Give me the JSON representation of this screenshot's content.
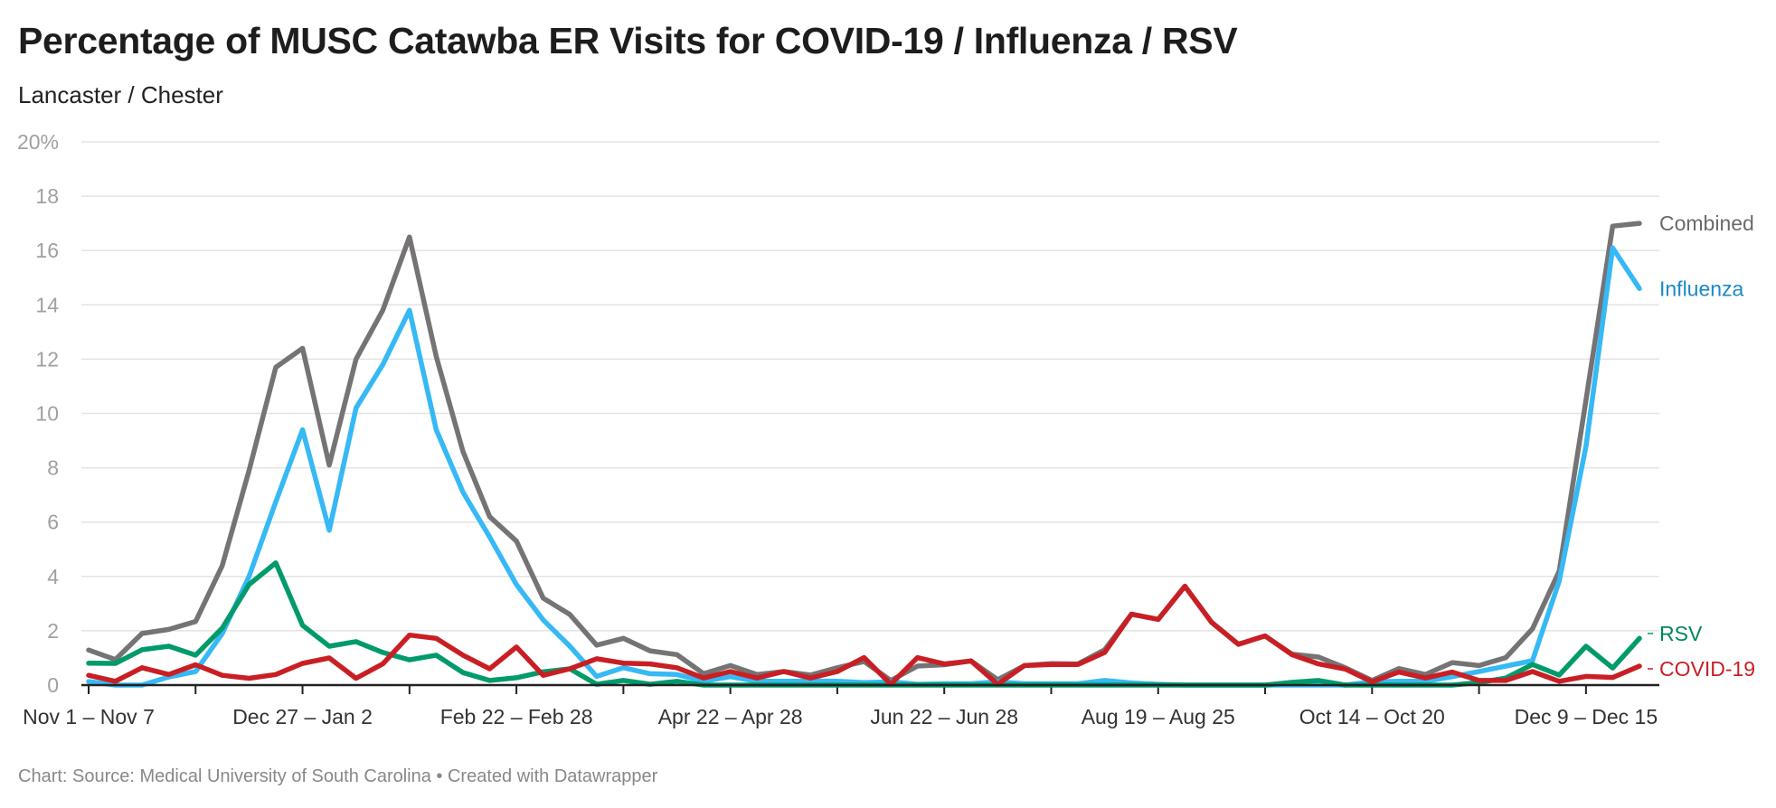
{
  "title": "Percentage of MUSC Catawba ER Visits for COVID-19 / Influenza / RSV",
  "subtitle": "Lancaster / Chester",
  "footer": "Chart: Source: Medical University of South Carolina • Created with Datawrapper",
  "chart_data": {
    "type": "line",
    "title": "Percentage of MUSC Catawba ER Visits for COVID-19 / Influenza / RSV",
    "subtitle": "Lancaster / Chester",
    "xlabel": "",
    "ylabel": "",
    "ylim": [
      0,
      20
    ],
    "y_ticks": [
      0,
      2,
      4,
      6,
      8,
      10,
      12,
      14,
      16,
      18,
      20
    ],
    "y_tick_labels": [
      "0",
      "2",
      "4",
      "6",
      "8",
      "10",
      "12",
      "14",
      "16",
      "18",
      "20%"
    ],
    "grid": true,
    "legend": "direct labels at right end of lines",
    "x_tick_labels": [
      {
        "index": 0,
        "label": "Nov 1 – Nov 7"
      },
      {
        "index": 8,
        "label": "Dec 27 – Jan 2"
      },
      {
        "index": 16,
        "label": "Feb 22 – Feb 28"
      },
      {
        "index": 24,
        "label": "Apr 22 – Apr 28"
      },
      {
        "index": 32,
        "label": "Jun 22 – Jun 28"
      },
      {
        "index": 40,
        "label": "Aug 19 – Aug 25"
      },
      {
        "index": 48,
        "label": "Oct 14 – Oct 20"
      },
      {
        "index": 56,
        "label": "Dec 9 – Dec 15"
      }
    ],
    "series": [
      {
        "name": "Combined",
        "color": "#757374",
        "label_color": "#6b6b6b",
        "values": [
          1.29,
          0.94,
          1.9,
          2.05,
          2.34,
          4.4,
          7.9,
          11.7,
          12.4,
          8.1,
          12.0,
          13.8,
          16.5,
          12.1,
          8.6,
          6.2,
          5.3,
          3.2,
          2.6,
          1.47,
          1.72,
          1.26,
          1.12,
          0.42,
          0.72,
          0.39,
          0.5,
          0.37,
          0.64,
          0.87,
          0.17,
          0.7,
          0.75,
          0.89,
          0.2,
          0.72,
          0.79,
          0.78,
          1.3,
          2.61,
          2.42,
          3.64,
          2.31,
          1.5,
          1.81,
          1.14,
          1.03,
          0.64,
          0.17,
          0.61,
          0.39,
          0.83,
          0.72,
          1.01,
          2.07,
          4.2,
          10.5,
          16.9,
          17.0
        ]
      },
      {
        "name": "Influenza",
        "color": "#36b9f5",
        "label_color": "#1a8ac6",
        "values": [
          0.13,
          0,
          0,
          0.3,
          0.5,
          1.9,
          4.0,
          6.75,
          9.4,
          5.7,
          10.2,
          11.8,
          13.8,
          9.4,
          7.1,
          5.45,
          3.7,
          2.4,
          1.43,
          0.32,
          0.64,
          0.42,
          0.39,
          0.14,
          0.31,
          0.14,
          0.14,
          0.15,
          0.14,
          0.09,
          0.12,
          0.03,
          0.05,
          0.05,
          0.12,
          0.05,
          0.05,
          0.05,
          0.17,
          0.08,
          0.03,
          0,
          0,
          0,
          0,
          0,
          0,
          0,
          0.12,
          0.14,
          0.14,
          0.31,
          0.5,
          0.7,
          0.9,
          3.83,
          8.8,
          16.1,
          14.6
        ]
      },
      {
        "name": "RSV",
        "color": "#009a6b",
        "label_color": "#00875e",
        "values": [
          0.81,
          0.8,
          1.3,
          1.43,
          1.1,
          2.1,
          3.7,
          4.5,
          2.2,
          1.43,
          1.6,
          1.2,
          0.93,
          1.1,
          0.46,
          0.17,
          0.27,
          0.49,
          0.6,
          0.03,
          0.17,
          0.03,
          0.14,
          0,
          0,
          0,
          0,
          0,
          0,
          0,
          0,
          0,
          0,
          0,
          0,
          0,
          0,
          0,
          0,
          0,
          0,
          0,
          0,
          0,
          0,
          0.1,
          0.17,
          0,
          0,
          0,
          0,
          0,
          0.09,
          0.26,
          0.76,
          0.37,
          1.43,
          0.63,
          1.72
        ]
      },
      {
        "name": "COVID-19",
        "color": "#c91f24",
        "label_color": "#c91f24",
        "values": [
          0.36,
          0.14,
          0.64,
          0.39,
          0.75,
          0.36,
          0.25,
          0.39,
          0.8,
          1.0,
          0.25,
          0.78,
          1.84,
          1.72,
          1.1,
          0.6,
          1.4,
          0.36,
          0.6,
          0.97,
          0.81,
          0.78,
          0.64,
          0.26,
          0.5,
          0.26,
          0.5,
          0.26,
          0.5,
          1.01,
          0.03,
          1.01,
          0.78,
          0.89,
          0.03,
          0.72,
          0.76,
          0.76,
          1.2,
          2.61,
          2.42,
          3.64,
          2.31,
          1.5,
          1.81,
          1.12,
          0.78,
          0.59,
          0.12,
          0.48,
          0.26,
          0.48,
          0.17,
          0.17,
          0.5,
          0.14,
          0.32,
          0.28,
          0.7
        ]
      }
    ]
  }
}
